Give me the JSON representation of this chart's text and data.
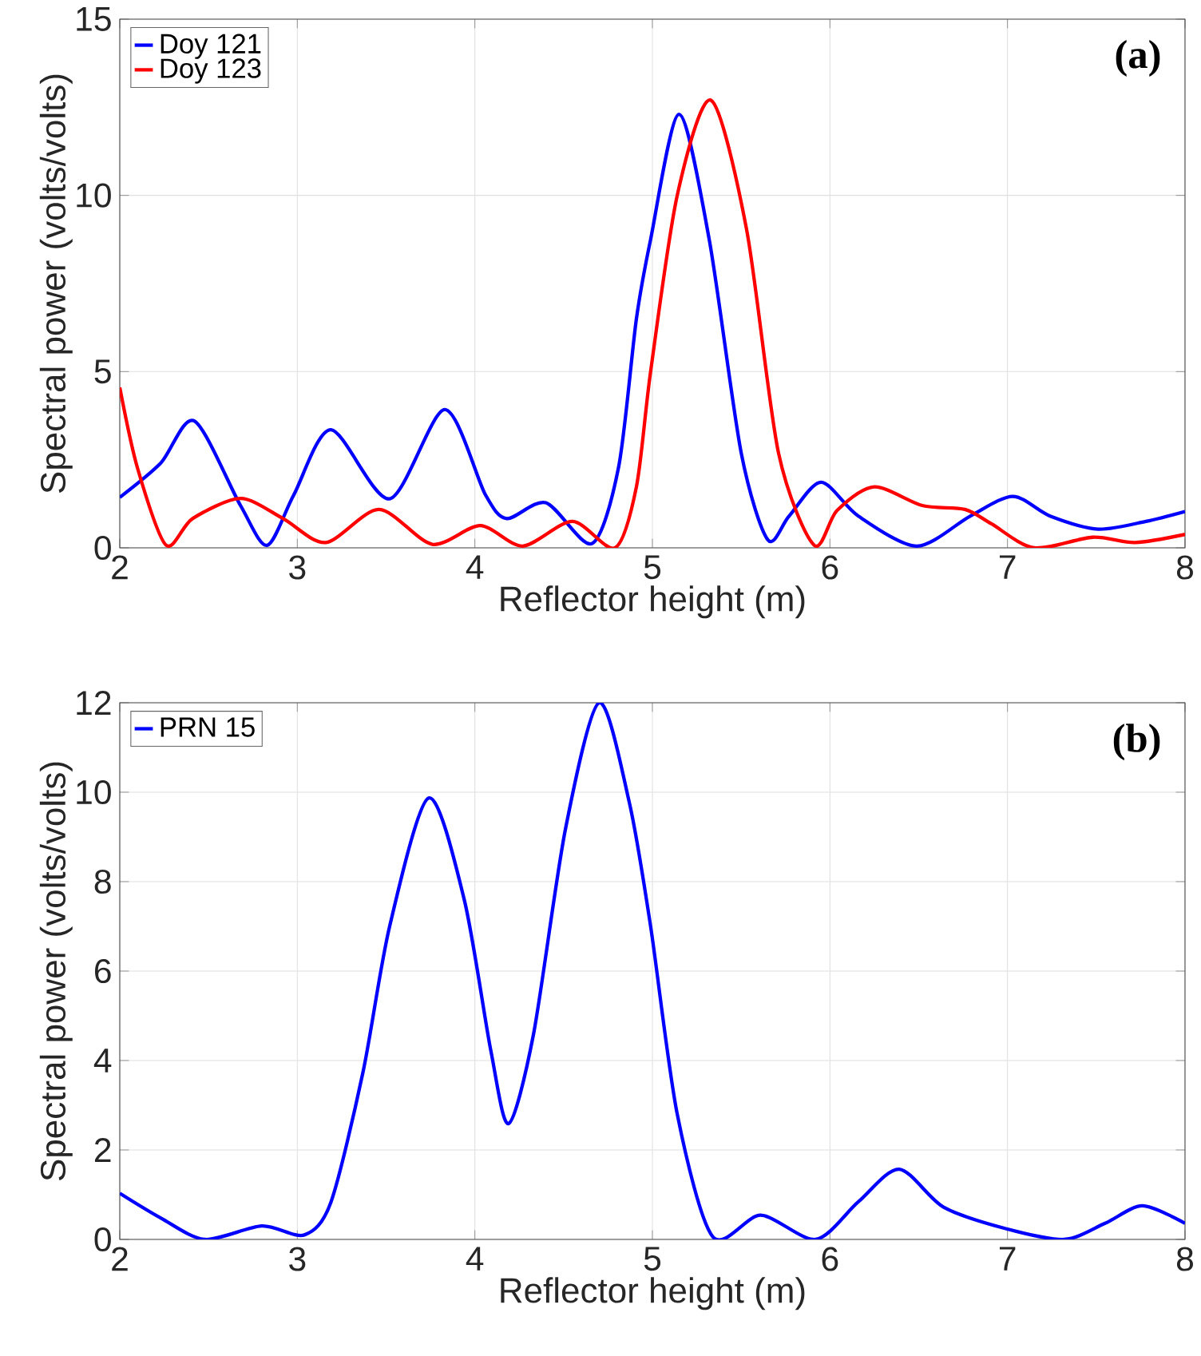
{
  "chart_data": [
    {
      "type": "line",
      "xlabel": "Reflector height (m)",
      "ylabel": "Spectral power (volts/volts)",
      "xlim": [
        2,
        8
      ],
      "ylim": [
        0,
        15
      ],
      "xticks": [
        2,
        3,
        4,
        5,
        6,
        7,
        8
      ],
      "yticks": [
        0,
        5,
        10,
        15
      ],
      "grid": true,
      "legend": "top left",
      "annotations": [
        "(a)"
      ],
      "series": [
        {
          "name": "Doy 121",
          "color": "#0000ff",
          "x": [
            2.0,
            2.23,
            2.42,
            2.68,
            2.83,
            2.98,
            3.19,
            3.52,
            3.83,
            4.06,
            4.18,
            4.4,
            4.66,
            4.81,
            4.91,
            4.99,
            5.15,
            5.32,
            5.5,
            5.65,
            5.77,
            5.95,
            6.16,
            6.49,
            6.79,
            7.03,
            7.24,
            7.51,
            7.78,
            8.0
          ],
          "values": [
            1.43,
            2.4,
            3.6,
            1.2,
            0.07,
            1.5,
            3.35,
            1.39,
            3.92,
            1.5,
            0.83,
            1.28,
            0.12,
            2.3,
            6.5,
            8.75,
            12.3,
            8.75,
            2.7,
            0.23,
            0.9,
            1.86,
            0.9,
            0.05,
            0.9,
            1.46,
            0.9,
            0.53,
            0.75,
            1.03
          ]
        },
        {
          "name": "Doy 123",
          "color": "#ff0000",
          "x": [
            2.0,
            2.1,
            2.26,
            2.41,
            2.68,
            2.92,
            3.16,
            3.46,
            3.76,
            4.03,
            4.27,
            4.55,
            4.79,
            4.91,
            4.99,
            5.14,
            5.33,
            5.53,
            5.71,
            5.91,
            6.04,
            6.25,
            6.52,
            6.76,
            6.91,
            7.15,
            7.48,
            7.72,
            8.0
          ],
          "values": [
            4.55,
            2.26,
            0.08,
            0.83,
            1.4,
            0.83,
            0.15,
            1.09,
            0.1,
            0.63,
            0.05,
            0.75,
            0.0,
            1.73,
            5.0,
            10.0,
            12.7,
            9.05,
            2.7,
            0.08,
            1.06,
            1.73,
            1.2,
            1.09,
            0.68,
            0.0,
            0.3,
            0.15,
            0.38
          ]
        }
      ]
    },
    {
      "type": "line",
      "xlabel": "Reflector height (m)",
      "ylabel": "Spectral power (volts/volts)",
      "xlim": [
        2,
        8
      ],
      "ylim": [
        0,
        12
      ],
      "xticks": [
        2,
        3,
        4,
        5,
        6,
        7,
        8
      ],
      "yticks": [
        0,
        2,
        4,
        6,
        8,
        10,
        12
      ],
      "grid": true,
      "legend": "top left",
      "annotations": [
        "(b)"
      ],
      "series": [
        {
          "name": "PRN 15",
          "color": "#0000ff",
          "x": [
            2.0,
            2.23,
            2.48,
            2.8,
            3.04,
            3.19,
            3.37,
            3.52,
            3.74,
            3.94,
            4.09,
            4.19,
            4.33,
            4.51,
            4.7,
            4.87,
            4.99,
            5.14,
            5.34,
            5.61,
            5.92,
            6.16,
            6.39,
            6.64,
            6.99,
            7.32,
            7.55,
            7.76,
            8.0
          ],
          "values": [
            1.03,
            0.48,
            0.0,
            0.3,
            0.1,
            0.84,
            3.74,
            7.0,
            9.87,
            7.6,
            4.22,
            2.59,
            4.58,
            9.17,
            12.0,
            9.77,
            7.0,
            2.8,
            0.06,
            0.54,
            0.0,
            0.84,
            1.57,
            0.72,
            0.24,
            0.0,
            0.36,
            0.75,
            0.36
          ]
        }
      ]
    }
  ]
}
